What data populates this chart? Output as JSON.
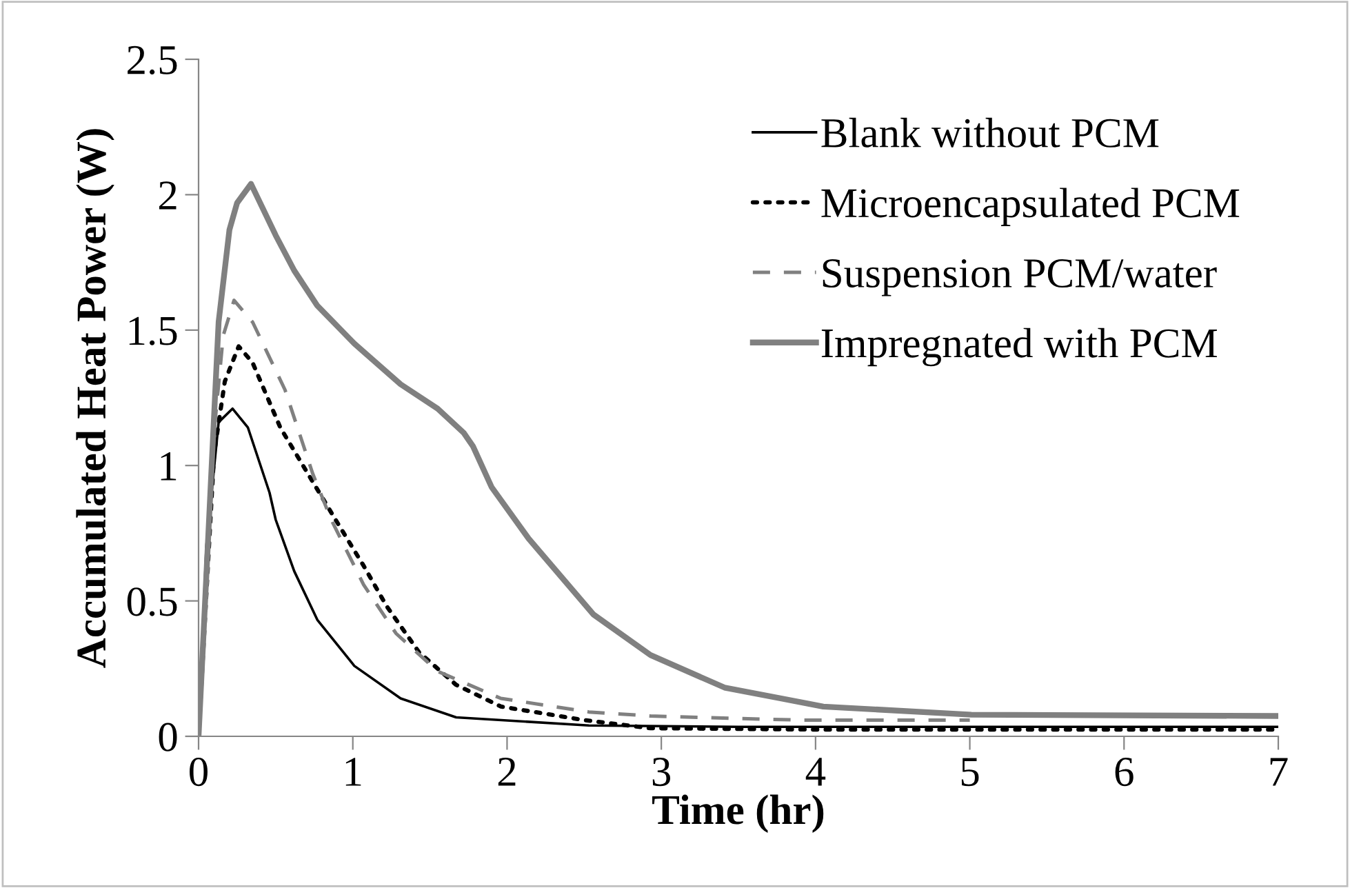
{
  "chart_data": {
    "type": "line",
    "xlabel": "Time (hr)",
    "ylabel": "Accumulated Heat Power (W)",
    "xlim": [
      0,
      7
    ],
    "xticks": [
      0,
      1,
      2,
      3,
      4,
      5,
      6,
      7
    ],
    "ylim": [
      0,
      2.5
    ],
    "yticks": [
      0,
      0.5,
      1,
      1.5,
      2,
      2.5
    ],
    "grid": false,
    "legend": "top right",
    "marker": "none",
    "series": [
      {
        "name": "Blank without PCM",
        "color": "#000000",
        "line_style": "solid",
        "x": [
          0,
          0.05,
          0.13,
          0.22,
          0.32,
          0.46,
          0.5,
          0.62,
          0.77,
          1.01,
          1.31,
          1.67,
          2.53,
          3.5,
          5,
          7
        ],
        "values": [
          0,
          0.7,
          1.16,
          1.21,
          1.14,
          0.9,
          0.8,
          0.61,
          0.43,
          0.26,
          0.14,
          0.07,
          0.04,
          0.035,
          0.035,
          0.035
        ]
      },
      {
        "name": "Microencapsulated PCM",
        "color": "#000000",
        "line_style": "dotted",
        "x": [
          0,
          0.1,
          0.17,
          0.26,
          0.35,
          0.53,
          0.74,
          0.92,
          1.07,
          1.22,
          1.43,
          1.67,
          1.96,
          2.5,
          2.93,
          4,
          5,
          7
        ],
        "values": [
          0,
          1.04,
          1.31,
          1.44,
          1.38,
          1.14,
          0.94,
          0.77,
          0.63,
          0.48,
          0.31,
          0.19,
          0.11,
          0.06,
          0.03,
          0.025,
          0.025,
          0.025
        ]
      },
      {
        "name": "Suspension PCM/water",
        "color": "#808080",
        "line_style": "dashed",
        "x": [
          0,
          0.1,
          0.16,
          0.23,
          0.35,
          0.56,
          0.74,
          0.86,
          1.07,
          1.28,
          1.55,
          1.96,
          2.53,
          2.93,
          3.89,
          5
        ],
        "values": [
          0,
          1.12,
          1.48,
          1.61,
          1.53,
          1.28,
          0.97,
          0.8,
          0.56,
          0.38,
          0.24,
          0.14,
          0.09,
          0.075,
          0.06,
          0.06
        ]
      },
      {
        "name": "Impregnated with PCM",
        "color": "#808080",
        "line_style": "solid",
        "x": [
          0,
          0.13,
          0.2,
          0.25,
          0.34,
          0.5,
          0.62,
          0.77,
          1.01,
          1.31,
          1.55,
          1.72,
          1.78,
          1.9,
          2.14,
          2.56,
          2.93,
          3.41,
          4.05,
          5.01,
          7
        ],
        "values": [
          0,
          1.53,
          1.87,
          1.97,
          2.04,
          1.85,
          1.72,
          1.59,
          1.45,
          1.3,
          1.21,
          1.12,
          1.07,
          0.92,
          0.73,
          0.45,
          0.3,
          0.18,
          0.11,
          0.08,
          0.075
        ]
      }
    ]
  }
}
